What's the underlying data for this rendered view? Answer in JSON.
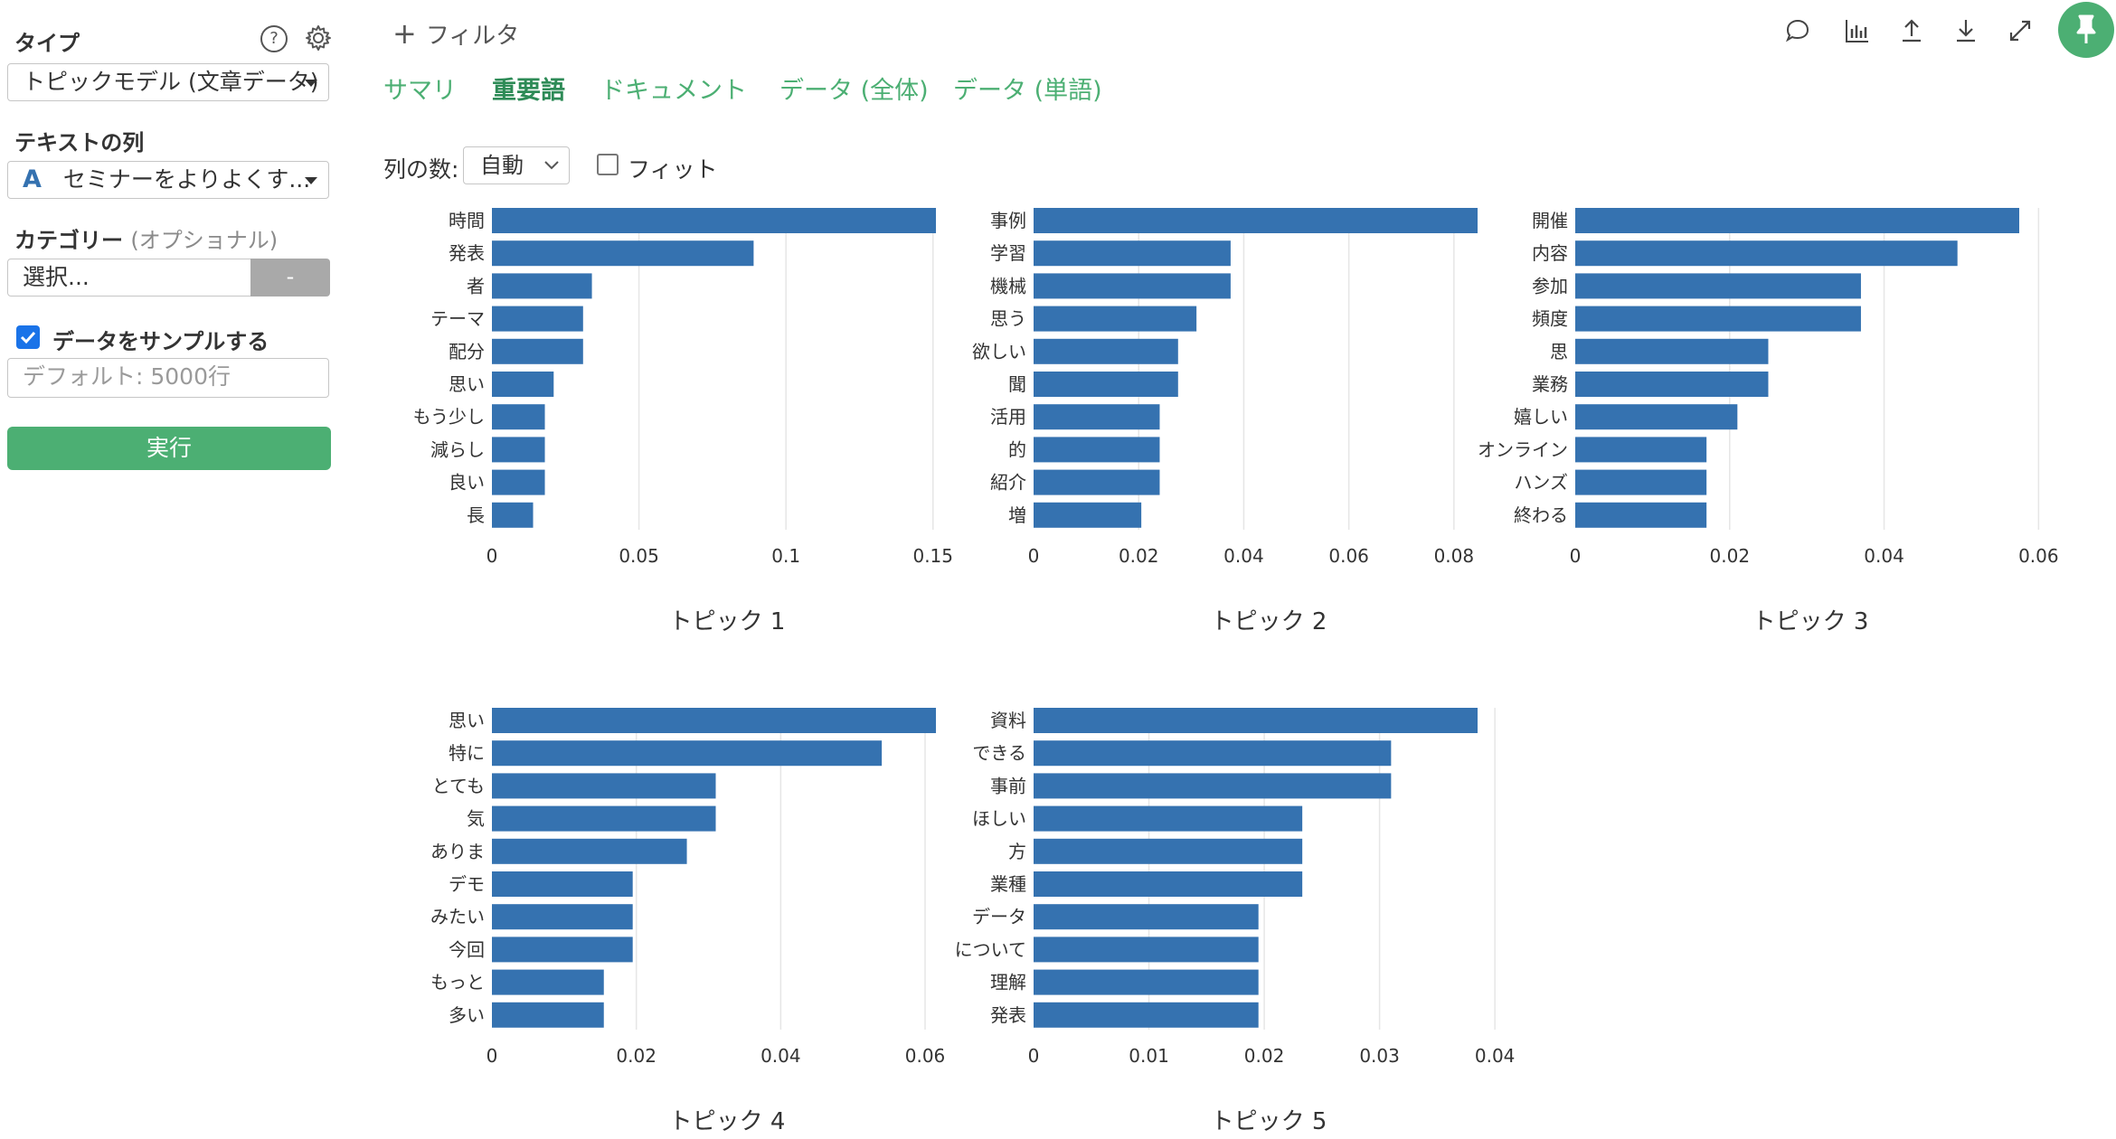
{
  "sidebar": {
    "type_label": "タイプ",
    "type_value": "トピックモデル (文章データ)",
    "text_col_label": "テキストの列",
    "text_col_type_icon": "A",
    "text_col_value": "セミナーをよりよくす...",
    "category_label": "カテゴリー",
    "category_optional": "(オプショナル)",
    "category_placeholder": "選択...",
    "category_button": "-",
    "sample_label": "データをサンプルする",
    "sample_checked": true,
    "sample_placeholder": "デフォルト: 5000行",
    "run_button": "実行"
  },
  "topbar": {
    "filter_label": "フィルタ",
    "tabs": [
      "サマリ",
      "重要語",
      "ドキュメント",
      "データ (全体)",
      "データ (単語)"
    ],
    "active_tab": "重要語",
    "icons": [
      "comment-icon",
      "chart-icon",
      "upload-icon",
      "download-icon",
      "expand-icon",
      "pin-icon"
    ]
  },
  "controls": {
    "columns_label": "列の数:",
    "columns_value": "自動",
    "fit_label": "フィット",
    "fit_checked": false
  },
  "colors": {
    "bar": "#3572b0",
    "accent": "#4caf73"
  },
  "chart_data": [
    {
      "type": "bar",
      "orientation": "horizontal",
      "title": "トピック 1",
      "categories": [
        "時間",
        "発表",
        "者",
        "テーマ",
        "配分",
        "思い",
        "もう少し",
        "減らし",
        "良い",
        "長"
      ],
      "values": [
        0.151,
        0.089,
        0.034,
        0.031,
        0.031,
        0.021,
        0.018,
        0.018,
        0.018,
        0.014
      ],
      "xlim": [
        0,
        0.151
      ],
      "ticks": [
        0,
        0.05,
        0.1,
        0.15
      ],
      "tick_labels": [
        "0",
        "0.05",
        "0.1",
        "0.15"
      ]
    },
    {
      "type": "bar",
      "orientation": "horizontal",
      "title": "トピック 2",
      "categories": [
        "事例",
        "学習",
        "機械",
        "思う",
        "欲しい",
        "聞",
        "活用",
        "的",
        "紹介",
        "増"
      ],
      "values": [
        0.0845,
        0.0375,
        0.0375,
        0.031,
        0.0275,
        0.0275,
        0.024,
        0.024,
        0.024,
        0.0205
      ],
      "xlim": [
        0,
        0.0845
      ],
      "ticks": [
        0,
        0.02,
        0.04,
        0.06,
        0.08
      ],
      "tick_labels": [
        "0",
        "0.02",
        "0.04",
        "0.06",
        "0.08"
      ]
    },
    {
      "type": "bar",
      "orientation": "horizontal",
      "title": "トピック 3",
      "categories": [
        "開催",
        "内容",
        "参加",
        "頻度",
        "思",
        "業務",
        "嬉しい",
        "オンライン",
        "ハンズ",
        "終わる"
      ],
      "values": [
        0.0575,
        0.0495,
        0.037,
        0.037,
        0.025,
        0.025,
        0.021,
        0.017,
        0.017,
        0.017
      ],
      "xlim": [
        0,
        0.0575
      ],
      "ticks": [
        0,
        0.02,
        0.04,
        0.06
      ],
      "tick_labels": [
        "0",
        "0.02",
        "0.04",
        "0.06"
      ]
    },
    {
      "type": "bar",
      "orientation": "horizontal",
      "title": "トピック 4",
      "categories": [
        "思い",
        "特に",
        "とても",
        "気",
        "ありま",
        "デモ",
        "みたい",
        "今回",
        "もっと",
        "多い"
      ],
      "values": [
        0.0615,
        0.054,
        0.031,
        0.031,
        0.027,
        0.0195,
        0.0195,
        0.0195,
        0.0155,
        0.0155
      ],
      "xlim": [
        0,
        0.0615
      ],
      "ticks": [
        0,
        0.02,
        0.04,
        0.06
      ],
      "tick_labels": [
        "0",
        "0.02",
        "0.04",
        "0.06"
      ]
    },
    {
      "type": "bar",
      "orientation": "horizontal",
      "title": "トピック 5",
      "categories": [
        "資料",
        "できる",
        "事前",
        "ほしい",
        "方",
        "業種",
        "データ",
        "について",
        "理解",
        "発表"
      ],
      "values": [
        0.0385,
        0.031,
        0.031,
        0.0233,
        0.0233,
        0.0233,
        0.0195,
        0.0195,
        0.0195,
        0.0195
      ],
      "xlim": [
        0,
        0.0385
      ],
      "ticks": [
        0,
        0.01,
        0.02,
        0.03,
        0.04
      ],
      "tick_labels": [
        "0",
        "0.01",
        "0.02",
        "0.03",
        "0.04"
      ]
    }
  ]
}
